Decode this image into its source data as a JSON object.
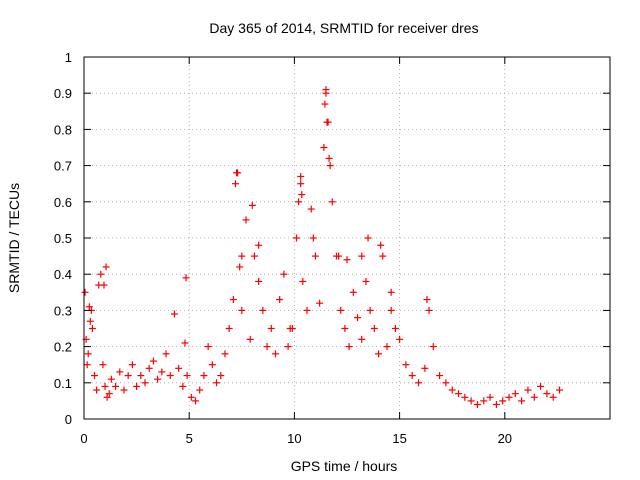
{
  "chart_data": {
    "type": "scatter",
    "title": "Day 365 of 2014, SRMTID for receiver dres",
    "xlabel": "GPS time / hours",
    "ylabel": "SRMTID / TECUs",
    "xlim": [
      0,
      25
    ],
    "ylim": [
      0,
      1
    ],
    "xticks": [
      0,
      5,
      10,
      15,
      20
    ],
    "yticks": [
      0,
      0.1,
      0.2,
      0.3,
      0.4,
      0.5,
      0.6,
      0.7,
      0.8,
      0.9,
      1
    ],
    "ytick_labels": [
      "0",
      "0.1",
      "0.2",
      "0.3",
      "0.4",
      "0.5",
      "0.6",
      "0.7",
      "0.8",
      "0.9",
      "1"
    ],
    "xtick_labels": [
      "0",
      "5",
      "10",
      "15",
      "20"
    ],
    "grid": true,
    "marker": "+",
    "color": "#ff0000",
    "series": [
      {
        "name": "SRMTID",
        "x": [
          0.05,
          0.1,
          0.15,
          0.2,
          0.3,
          0.4,
          0.5,
          0.6,
          0.7,
          0.8,
          0.9,
          1.0,
          1.1,
          1.2,
          1.3,
          1.5,
          1.7,
          1.9,
          2.1,
          2.3,
          2.5,
          2.7,
          2.9,
          3.1,
          3.3,
          3.5,
          3.7,
          3.9,
          4.1,
          4.3,
          4.5,
          4.7,
          4.8,
          4.9,
          5.1,
          5.3,
          5.5,
          5.7,
          5.9,
          6.1,
          6.3,
          6.5,
          6.7,
          6.9,
          7.1,
          7.2,
          7.3,
          7.4,
          7.5,
          7.7,
          7.9,
          8.1,
          8.3,
          8.5,
          8.7,
          8.9,
          9.1,
          9.3,
          9.5,
          9.7,
          9.9,
          10.1,
          10.2,
          10.3,
          10.4,
          10.6,
          10.8,
          11.0,
          11.2,
          11.4,
          11.5,
          11.6,
          11.7,
          11.8,
          12.0,
          12.2,
          12.4,
          12.6,
          12.8,
          13.0,
          13.2,
          13.4,
          13.6,
          13.8,
          14.0,
          14.2,
          14.4,
          14.6,
          14.8,
          15.0,
          15.3,
          15.6,
          15.9,
          16.2,
          16.4,
          16.6,
          16.9,
          17.2,
          17.5,
          17.8,
          18.1,
          18.4,
          18.7,
          19.0,
          19.3,
          19.6,
          19.9,
          20.2,
          20.5,
          20.8,
          21.1,
          21.4,
          21.7,
          22.0,
          22.3,
          22.6,
          0.25,
          0.35,
          0.95,
          1.05,
          4.85,
          7.25,
          7.5,
          8.0,
          8.3,
          9.8,
          10.3,
          10.35,
          10.9,
          11.45,
          11.5,
          11.55,
          11.65,
          12.1,
          12.5,
          13.2,
          13.5,
          14.1,
          14.6,
          16.3
        ],
        "y": [
          0.35,
          0.22,
          0.15,
          0.18,
          0.27,
          0.25,
          0.12,
          0.08,
          0.37,
          0.4,
          0.15,
          0.09,
          0.06,
          0.07,
          0.11,
          0.09,
          0.13,
          0.08,
          0.12,
          0.15,
          0.09,
          0.12,
          0.1,
          0.14,
          0.16,
          0.11,
          0.13,
          0.18,
          0.12,
          0.29,
          0.14,
          0.09,
          0.21,
          0.12,
          0.06,
          0.05,
          0.08,
          0.12,
          0.2,
          0.15,
          0.1,
          0.12,
          0.18,
          0.25,
          0.33,
          0.65,
          0.68,
          0.42,
          0.3,
          0.55,
          0.22,
          0.45,
          0.38,
          0.3,
          0.2,
          0.25,
          0.18,
          0.33,
          0.4,
          0.2,
          0.25,
          0.5,
          0.6,
          0.65,
          0.38,
          0.3,
          0.58,
          0.45,
          0.32,
          0.75,
          0.9,
          0.82,
          0.7,
          0.6,
          0.45,
          0.3,
          0.25,
          0.2,
          0.35,
          0.28,
          0.22,
          0.38,
          0.3,
          0.25,
          0.18,
          0.45,
          0.2,
          0.3,
          0.25,
          0.22,
          0.15,
          0.12,
          0.1,
          0.14,
          0.3,
          0.2,
          0.12,
          0.1,
          0.08,
          0.07,
          0.06,
          0.05,
          0.04,
          0.05,
          0.06,
          0.04,
          0.05,
          0.06,
          0.07,
          0.05,
          0.08,
          0.06,
          0.09,
          0.07,
          0.06,
          0.08,
          0.31,
          0.3,
          0.37,
          0.42,
          0.39,
          0.68,
          0.45,
          0.59,
          0.48,
          0.25,
          0.67,
          0.62,
          0.5,
          0.87,
          0.91,
          0.82,
          0.72,
          0.45,
          0.44,
          0.45,
          0.5,
          0.48,
          0.35,
          0.33
        ]
      }
    ]
  }
}
